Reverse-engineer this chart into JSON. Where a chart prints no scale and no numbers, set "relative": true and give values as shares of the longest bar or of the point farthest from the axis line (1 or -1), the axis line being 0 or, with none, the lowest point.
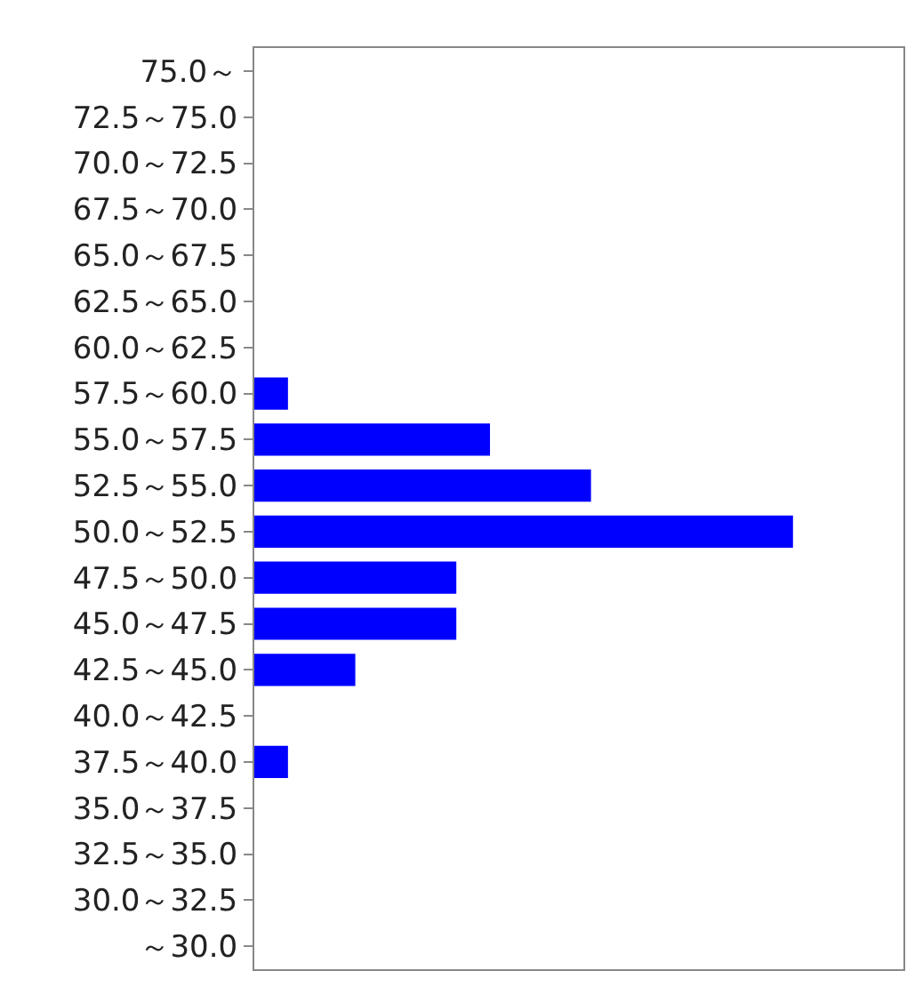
{
  "chart_data": {
    "type": "bar",
    "orientation": "horizontal",
    "relative": true,
    "categories": [
      "75.0～",
      "72.5～75.0",
      "70.0～72.5",
      "67.5～70.0",
      "65.0～67.5",
      "62.5～65.0",
      "60.0～62.5",
      "57.5～60.0",
      "55.0～57.5",
      "52.5～55.0",
      "50.0～52.5",
      "47.5～50.0",
      "45.0～47.5",
      "42.5～45.0",
      "40.0～42.5",
      "37.5～40.0",
      "35.0～37.5",
      "32.5～35.0",
      "30.0～32.5",
      "～30.0"
    ],
    "values": [
      0,
      0,
      0,
      0,
      0,
      0,
      0,
      0.0625,
      0.4375,
      0.625,
      1,
      0.375,
      0.375,
      0.1875,
      0,
      0.0625,
      0,
      0,
      0,
      0
    ],
    "color": "#0000ff",
    "legend": false
  }
}
